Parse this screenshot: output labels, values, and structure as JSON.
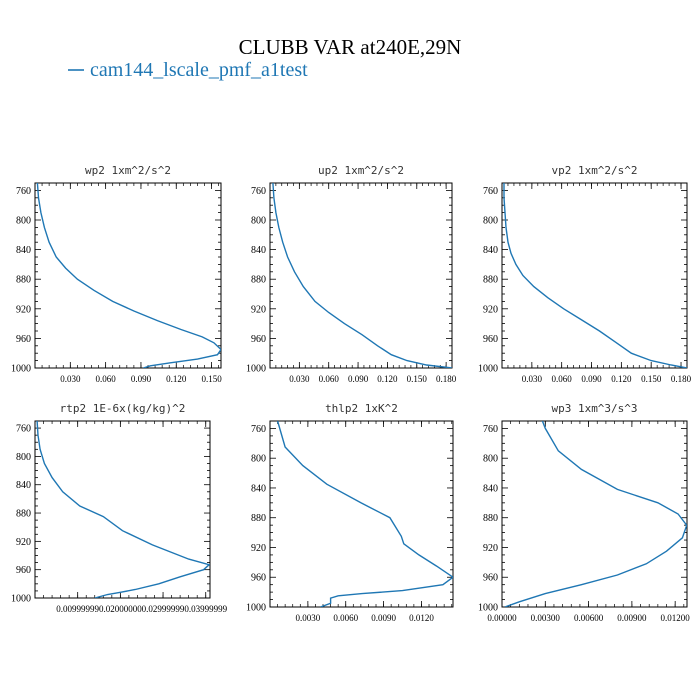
{
  "title": "CLUBB VAR at240E,29N",
  "legend": {
    "label": "cam144_lscale_pmf_a1test",
    "color": "#1f77b4"
  },
  "line_color": "#1f77b4",
  "chart_data": [
    {
      "type": "line",
      "title": "wp2  1xm^2/s^2",
      "xlim": [
        0.0,
        0.158
      ],
      "ylim": [
        1000,
        750
      ],
      "xticks": [
        0.03,
        0.06,
        0.09,
        0.12,
        0.15
      ],
      "xtick_labels": [
        "0.030",
        "0.060",
        "0.090",
        "0.120",
        "0.150"
      ],
      "yticks": [
        760,
        800,
        840,
        880,
        920,
        960,
        1000
      ],
      "x": [
        0.002,
        0.003,
        0.005,
        0.008,
        0.012,
        0.018,
        0.026,
        0.036,
        0.05,
        0.066,
        0.084,
        0.104,
        0.124,
        0.142,
        0.152,
        0.158,
        0.155,
        0.138,
        0.115,
        0.098,
        0.092
      ],
      "y": [
        750,
        770,
        790,
        810,
        830,
        850,
        865,
        880,
        895,
        910,
        923,
        936,
        948,
        958,
        966,
        975,
        982,
        988,
        993,
        997,
        1000
      ]
    },
    {
      "type": "line",
      "title": "up2  1xm^2/s^2",
      "xlim": [
        0.0,
        0.186
      ],
      "ylim": [
        1000,
        750
      ],
      "xticks": [
        0.03,
        0.06,
        0.09,
        0.12,
        0.15,
        0.18
      ],
      "xtick_labels": [
        "0.030",
        "0.060",
        "0.090",
        "0.120",
        "0.150",
        "0.180"
      ],
      "yticks": [
        760,
        800,
        840,
        880,
        920,
        960,
        1000
      ],
      "x": [
        0.003,
        0.004,
        0.006,
        0.009,
        0.013,
        0.018,
        0.025,
        0.034,
        0.046,
        0.06,
        0.076,
        0.094,
        0.11,
        0.124,
        0.14,
        0.16,
        0.186
      ],
      "y": [
        750,
        770,
        790,
        810,
        830,
        850,
        870,
        890,
        910,
        925,
        940,
        955,
        970,
        982,
        990,
        996,
        1000
      ]
    },
    {
      "type": "line",
      "title": "vp2  1xm^2/s^2",
      "xlim": [
        0.0,
        0.186
      ],
      "ylim": [
        1000,
        750
      ],
      "xticks": [
        0.03,
        0.06,
        0.09,
        0.12,
        0.15,
        0.18
      ],
      "xtick_labels": [
        "0.030",
        "0.060",
        "0.090",
        "0.120",
        "0.150",
        "0.180"
      ],
      "yticks": [
        760,
        800,
        840,
        880,
        920,
        960,
        1000
      ],
      "x": [
        0.002,
        0.002,
        0.003,
        0.004,
        0.006,
        0.009,
        0.014,
        0.021,
        0.032,
        0.046,
        0.062,
        0.08,
        0.098,
        0.114,
        0.13,
        0.15,
        0.17,
        0.186
      ],
      "y": [
        750,
        770,
        790,
        810,
        830,
        845,
        860,
        875,
        890,
        905,
        920,
        935,
        950,
        965,
        980,
        990,
        996,
        1000
      ]
    },
    {
      "type": "line",
      "title": "rtp2  1E-6x(kg/kg)^2",
      "xlim": [
        0.0,
        0.041
      ],
      "ylim": [
        1000,
        750
      ],
      "xticks": [
        0.01,
        0.02,
        0.03,
        0.04
      ],
      "xtick_labels": [
        "0.00999999",
        "0.02000000",
        "0.02999999",
        "0.03999999"
      ],
      "yticks": [
        760,
        800,
        840,
        880,
        920,
        960,
        1000
      ],
      "x": [
        0.0005,
        0.0007,
        0.0012,
        0.0022,
        0.004,
        0.0065,
        0.0105,
        0.016,
        0.0205,
        0.0275,
        0.036,
        0.0408,
        0.0395,
        0.034,
        0.029,
        0.0235,
        0.02,
        0.017,
        0.014
      ],
      "y": [
        750,
        770,
        790,
        810,
        830,
        850,
        870,
        885,
        905,
        925,
        945,
        953,
        960,
        970,
        980,
        988,
        992,
        995,
        1000
      ]
    },
    {
      "type": "line",
      "title": "thlp2  1xK^2",
      "xlim": [
        0.0,
        0.0145
      ],
      "ylim": [
        1000,
        750
      ],
      "xticks": [
        0.003,
        0.006,
        0.009,
        0.012
      ],
      "xtick_labels": [
        "0.0030",
        "0.0060",
        "0.0090",
        "0.0120"
      ],
      "yticks": [
        760,
        800,
        840,
        880,
        920,
        960,
        1000
      ],
      "x": [
        0.0006,
        0.0012,
        0.0026,
        0.0045,
        0.0072,
        0.0095,
        0.0104,
        0.0106,
        0.0118,
        0.0132,
        0.0145,
        0.0137,
        0.0105,
        0.0073,
        0.0054,
        0.0048,
        0.0048,
        0.004
      ],
      "y": [
        750,
        785,
        810,
        835,
        860,
        880,
        905,
        915,
        930,
        945,
        960,
        970,
        978,
        982,
        985,
        988,
        995,
        1000
      ]
    },
    {
      "type": "line",
      "title": "wp3  1xm^3/s^3",
      "xlim": [
        0.0,
        0.01282
      ],
      "ylim": [
        1000,
        750
      ],
      "xticks": [
        0.0,
        0.003,
        0.006,
        0.009,
        0.012
      ],
      "xtick_labels": [
        "0.00000",
        "0.00300",
        "0.00600",
        "0.00900",
        "0.01200"
      ],
      "yticks": [
        760,
        800,
        840,
        880,
        920,
        960,
        1000
      ],
      "x": [
        0.0028,
        0.003,
        0.0039,
        0.0055,
        0.008,
        0.0108,
        0.0122,
        0.0128,
        0.0125,
        0.0114,
        0.01,
        0.008,
        0.0055,
        0.003,
        0.0012,
        0.0002
      ],
      "y": [
        750,
        760,
        790,
        815,
        842,
        860,
        875,
        890,
        907,
        925,
        942,
        957,
        970,
        982,
        993,
        1000
      ]
    }
  ]
}
